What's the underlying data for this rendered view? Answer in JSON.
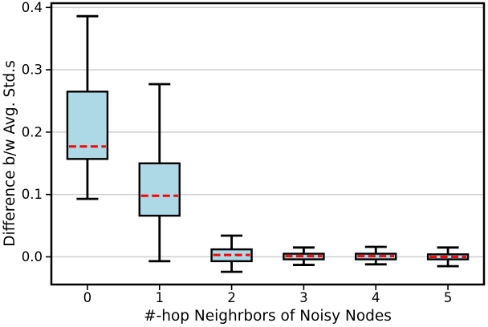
{
  "chart_data": {
    "type": "boxplot",
    "title": "",
    "xlabel": "#-hop Neighrbors of Noisy Nodes",
    "ylabel": "Difference b/w Avg. Std.s",
    "categories": [
      "0",
      "1",
      "2",
      "3",
      "4",
      "5"
    ],
    "y_ticks": [
      0.0,
      0.1,
      0.2,
      0.3,
      0.4
    ],
    "y_tick_labels": [
      "0.0",
      "0.1",
      "0.2",
      "0.3",
      "0.4"
    ],
    "ylim": [
      -0.0444,
      0.4068
    ],
    "grid": "horizontal",
    "legend": "none",
    "boxes": [
      {
        "category": "0",
        "whislo": 0.093,
        "q1": 0.157,
        "med": 0.177,
        "q3": 0.265,
        "whishi": 0.386
      },
      {
        "category": "1",
        "whislo": -0.007,
        "q1": 0.066,
        "med": 0.098,
        "q3": 0.15,
        "whishi": 0.277
      },
      {
        "category": "2",
        "whislo": -0.024,
        "q1": -0.007,
        "med": 0.003,
        "q3": 0.012,
        "whishi": 0.034
      },
      {
        "category": "3",
        "whislo": -0.013,
        "q1": -0.004,
        "med": 0.001,
        "q3": 0.005,
        "whishi": 0.015
      },
      {
        "category": "4",
        "whislo": -0.012,
        "q1": -0.004,
        "med": 0.001,
        "q3": 0.005,
        "whishi": 0.016
      },
      {
        "category": "5",
        "whislo": -0.015,
        "q1": -0.004,
        "med": 0.0,
        "q3": 0.004,
        "whishi": 0.015
      }
    ],
    "colors": {
      "box_fill": "#ADD8E6",
      "box_edge": "#000000",
      "median": "#FF0000",
      "whisker": "#000000",
      "grid": "#CCCCCC",
      "spine": "#000000",
      "background": "#FFFFFF"
    }
  }
}
